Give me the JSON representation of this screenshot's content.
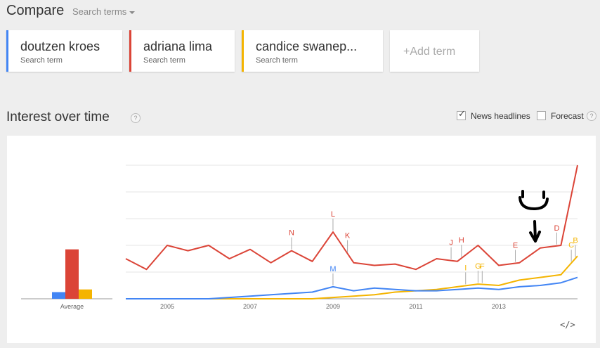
{
  "header": {
    "title": "Compare",
    "dropdown_label": "Search terms"
  },
  "terms": [
    {
      "name": "doutzen kroes",
      "sub": "Search term",
      "color": "#4285f4"
    },
    {
      "name": "adriana lima",
      "sub": "Search term",
      "color": "#db4437"
    },
    {
      "name": "candice swanep...",
      "sub": "Search term",
      "color": "#f4b400"
    }
  ],
  "add_term": "+Add term",
  "interest": {
    "title": "Interest over time",
    "help": "?",
    "news_headlines": "News headlines",
    "forecast": "Forecast",
    "embed": "</>"
  },
  "chart_data": {
    "type": "line",
    "x_ticks": [
      "2005",
      "2007",
      "2009",
      "2011",
      "2013"
    ],
    "average_label": "Average",
    "averages": [
      {
        "name": "doutzen kroes",
        "value": 5,
        "color": "#4285f4"
      },
      {
        "name": "adriana lima",
        "value": 37,
        "color": "#db4437"
      },
      {
        "name": "candice swanep...",
        "value": 7,
        "color": "#f4b400"
      }
    ],
    "ylim": [
      0,
      100
    ],
    "x": [
      2004.0,
      2004.5,
      2005.0,
      2005.5,
      2006.0,
      2006.5,
      2007.0,
      2007.5,
      2008.0,
      2008.5,
      2009.0,
      2009.5,
      2010.0,
      2010.5,
      2011.0,
      2011.5,
      2012.0,
      2012.5,
      2013.0,
      2013.5,
      2014.0,
      2014.5,
      2014.9
    ],
    "series": [
      {
        "name": "adriana lima",
        "color": "#db4437",
        "values": [
          30,
          22,
          40,
          36,
          40,
          30,
          37,
          27,
          36,
          28,
          50,
          27,
          25,
          26,
          22,
          30,
          28,
          40,
          25,
          27,
          38,
          40,
          100
        ]
      },
      {
        "name": "doutzen kroes",
        "color": "#4285f4",
        "values": [
          0,
          0,
          0,
          0,
          0,
          1,
          2,
          3,
          4,
          5,
          9,
          6,
          8,
          7,
          6,
          6,
          7,
          8,
          7,
          9,
          10,
          12,
          16
        ]
      },
      {
        "name": "candice swanep...",
        "color": "#f4b400",
        "values": [
          0,
          0,
          0,
          0,
          0,
          0,
          0,
          0,
          0,
          0,
          1,
          2,
          3,
          5,
          6,
          7,
          9,
          11,
          10,
          14,
          16,
          18,
          32
        ]
      }
    ],
    "annotations": [
      {
        "label": "N",
        "x": 2008.0,
        "color": "#db4437"
      },
      {
        "label": "L",
        "x": 2009.0,
        "color": "#db4437"
      },
      {
        "label": "K",
        "x": 2009.35,
        "color": "#db4437"
      },
      {
        "label": "M",
        "x": 2009.0,
        "color": "#4285f4"
      },
      {
        "label": "J",
        "x": 2011.85,
        "color": "#db4437"
      },
      {
        "label": "H",
        "x": 2012.1,
        "color": "#db4437"
      },
      {
        "label": "I",
        "x": 2012.2,
        "color": "#f4b400"
      },
      {
        "label": "G",
        "x": 2012.5,
        "color": "#f4b400"
      },
      {
        "label": "F",
        "x": 2012.6,
        "color": "#f4b400"
      },
      {
        "label": "E",
        "x": 2013.4,
        "color": "#db4437"
      },
      {
        "label": "D",
        "x": 2014.4,
        "color": "#db4437"
      },
      {
        "label": "C",
        "x": 2014.75,
        "color": "#f4b400"
      },
      {
        "label": "B",
        "x": 2014.85,
        "color": "#f4b400"
      }
    ],
    "overlay": "smiley-and-arrow"
  }
}
